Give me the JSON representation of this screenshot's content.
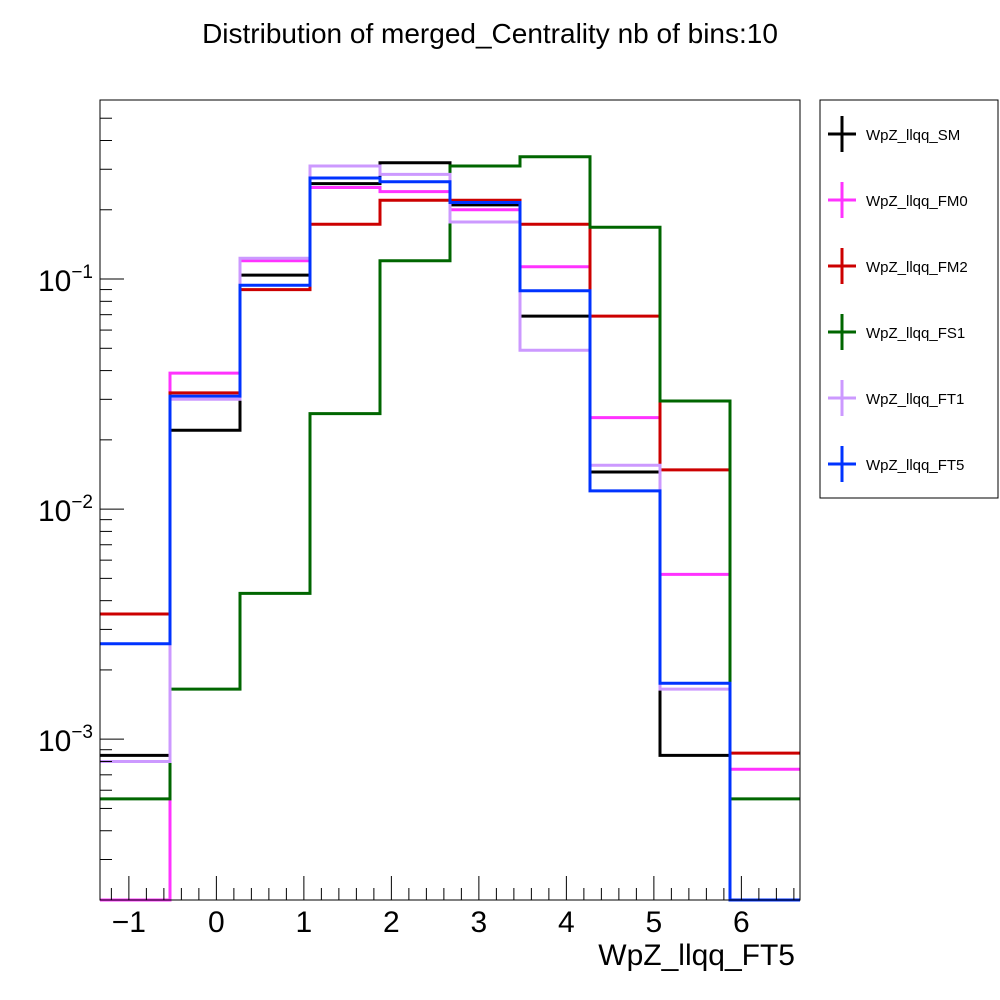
{
  "chart_data": {
    "type": "step-histogram",
    "title": "Distribution of merged_Centrality nb of bins:10",
    "xlabel": "WpZ_llqq_FT5",
    "ylabel": "",
    "y_scale": "log",
    "xlim": [
      -1.33,
      6.67
    ],
    "ylim": [
      0.0002,
      0.6
    ],
    "x_ticks": [
      -1,
      0,
      1,
      2,
      3,
      4,
      5,
      6
    ],
    "y_ticks": [
      {
        "value": 0.001,
        "base": "10",
        "exp": "−3"
      },
      {
        "value": 0.01,
        "base": "10",
        "exp": "−2"
      },
      {
        "value": 0.1,
        "base": "10",
        "exp": "−1"
      }
    ],
    "bin_edges": [
      -1.33,
      -0.53,
      0.27,
      1.07,
      1.87,
      2.67,
      3.47,
      4.27,
      5.07,
      5.87,
      6.67
    ],
    "legend_position": "top-right, outside plot",
    "series": [
      {
        "name": "WpZ_llqq_SM",
        "color": "#000000",
        "values": [
          0.00085,
          0.022,
          0.104,
          0.26,
          0.32,
          0.21,
          0.069,
          0.0145,
          0.00085,
          1e-05
        ]
      },
      {
        "name": "WpZ_llqq_FM0",
        "color": "#ff33ff",
        "values": [
          1e-05,
          0.039,
          0.12,
          0.25,
          0.24,
          0.2,
          0.113,
          0.025,
          0.0052,
          0.00074
        ]
      },
      {
        "name": "WpZ_llqq_FM2",
        "color": "#cc0000",
        "values": [
          0.0035,
          0.032,
          0.09,
          0.173,
          0.22,
          0.22,
          0.173,
          0.069,
          0.0148,
          0.00087
        ]
      },
      {
        "name": "WpZ_llqq_FS1",
        "color": "#006600",
        "values": [
          0.00055,
          0.00165,
          0.0043,
          0.026,
          0.12,
          0.31,
          0.34,
          0.168,
          0.0295,
          0.00055
        ]
      },
      {
        "name": "WpZ_llqq_FT1",
        "color": "#cc99ff",
        "values": [
          0.0008,
          0.03,
          0.123,
          0.31,
          0.285,
          0.177,
          0.049,
          0.0155,
          0.00165,
          1e-05
        ]
      },
      {
        "name": "WpZ_llqq_FT5",
        "color": "#0033ff",
        "values": [
          0.0026,
          0.031,
          0.094,
          0.275,
          0.265,
          0.215,
          0.089,
          0.012,
          0.00175,
          1e-05
        ]
      }
    ]
  }
}
